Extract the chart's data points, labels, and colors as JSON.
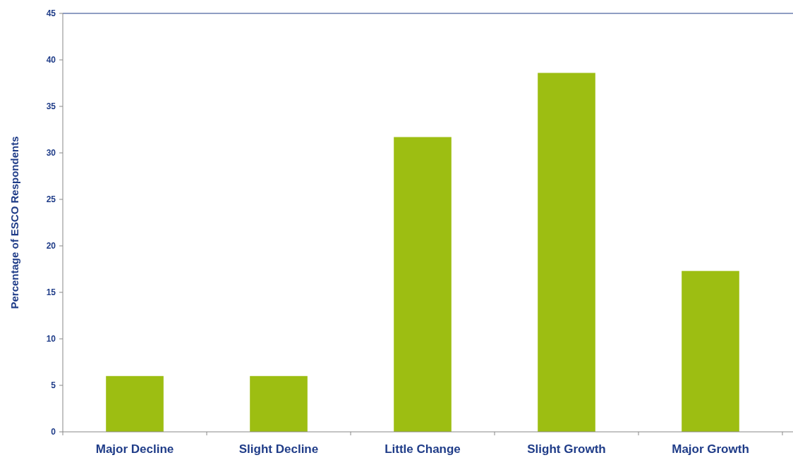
{
  "chart_data": {
    "type": "bar",
    "ylabel": "Percentage of ESCO Respondents",
    "categories": [
      "Major Decline",
      "Slight Decline",
      "Little Change",
      "Slight Growth",
      "Major Growth"
    ],
    "values": [
      6,
      6,
      31.7,
      38.6,
      17.3
    ],
    "color": "#9dbe12",
    "ylim": [
      0,
      45
    ],
    "yticks": [
      0,
      5,
      10,
      15,
      20,
      25,
      30,
      35,
      40,
      45
    ],
    "grid": false
  }
}
